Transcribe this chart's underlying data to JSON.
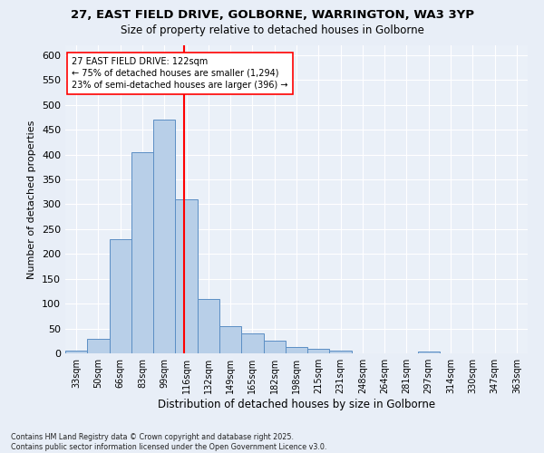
{
  "title_line1": "27, EAST FIELD DRIVE, GOLBORNE, WARRINGTON, WA3 3YP",
  "title_line2": "Size of property relative to detached houses in Golborne",
  "xlabel": "Distribution of detached houses by size in Golborne",
  "ylabel": "Number of detached properties",
  "bin_labels": [
    "33sqm",
    "50sqm",
    "66sqm",
    "83sqm",
    "99sqm",
    "116sqm",
    "132sqm",
    "149sqm",
    "165sqm",
    "182sqm",
    "198sqm",
    "215sqm",
    "231sqm",
    "248sqm",
    "264sqm",
    "281sqm",
    "297sqm",
    "314sqm",
    "330sqm",
    "347sqm",
    "363sqm"
  ],
  "bar_heights": [
    5,
    30,
    230,
    405,
    470,
    310,
    110,
    55,
    40,
    25,
    13,
    10,
    6,
    0,
    0,
    0,
    4,
    0,
    0,
    0,
    0
  ],
  "bar_color": "#b8cfe8",
  "bar_edge_color": "#5b8ec4",
  "vline_x_index": 5,
  "vline_color": "red",
  "annotation_text": "27 EAST FIELD DRIVE: 122sqm\n← 75% of detached houses are smaller (1,294)\n23% of semi-detached houses are larger (396) →",
  "annotation_box_color": "white",
  "annotation_box_edge": "red",
  "ylim": [
    0,
    620
  ],
  "yticks": [
    0,
    50,
    100,
    150,
    200,
    250,
    300,
    350,
    400,
    450,
    500,
    550,
    600
  ],
  "footer_text": "Contains HM Land Registry data © Crown copyright and database right 2025.\nContains public sector information licensed under the Open Government Licence v3.0.",
  "background_color": "#e8eef7",
  "plot_bg_color": "#eaf0f8"
}
